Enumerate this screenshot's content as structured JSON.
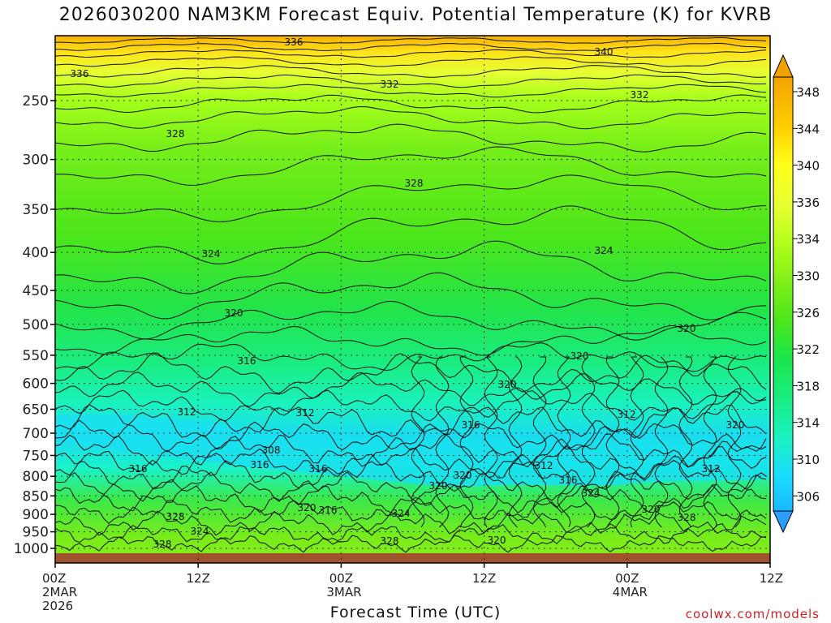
{
  "chart_data": {
    "type": "heatmap",
    "title": "2026030200 NAM3KM Forecast Equiv. Potential Temperature (K) for KVRB",
    "xlabel": "Forecast Time (UTC)",
    "ylabel": "",
    "credit": "coolwx.com/models",
    "y_axis": {
      "scale": "pressure (descending upward)",
      "ticks": [
        250,
        300,
        350,
        400,
        450,
        500,
        550,
        600,
        650,
        700,
        750,
        800,
        850,
        900,
        950,
        1000
      ]
    },
    "x_axis": {
      "ticks": [
        {
          "line1": "00Z",
          "line2": "2MAR",
          "line3": "2026"
        },
        {
          "line1": "12Z",
          "line2": "",
          "line3": ""
        },
        {
          "line1": "00Z",
          "line2": "3MAR",
          "line3": ""
        },
        {
          "line1": "12Z",
          "line2": "",
          "line3": ""
        },
        {
          "line1": "00Z",
          "line2": "4MAR",
          "line3": ""
        },
        {
          "line1": "12Z",
          "line2": "",
          "line3": ""
        }
      ]
    },
    "colorbar": {
      "labels": [
        348,
        344,
        340,
        336,
        334,
        330,
        326,
        322,
        318,
        314,
        310,
        306
      ],
      "colors": [
        "#f2a200",
        "#ffd000",
        "#ffff1a",
        "#e6ff33",
        "#b4ff1a",
        "#80ef1a",
        "#4ce61a",
        "#1ae64d",
        "#1aed80",
        "#1af2c0",
        "#1adcff",
        "#1ab8ff",
        "#2a9fff"
      ]
    },
    "contour_labels": [
      "336",
      "340",
      "336",
      "332",
      "332",
      "328",
      "328",
      "324",
      "324",
      "320",
      "320",
      "316",
      "320",
      "320",
      "312",
      "312",
      "316",
      "308",
      "312",
      "316",
      "312",
      "320",
      "316",
      "320",
      "316",
      "312",
      "316",
      "324",
      "320",
      "320",
      "316",
      "324",
      "320",
      "328",
      "324",
      "328",
      "328",
      "328",
      "320"
    ],
    "profile": [
      {
        "p": 250,
        "theta_e": 333
      },
      {
        "p": 300,
        "theta_e": 330
      },
      {
        "p": 400,
        "theta_e": 326
      },
      {
        "p": 500,
        "theta_e": 322
      },
      {
        "p": 600,
        "theta_e": 318
      },
      {
        "p": 700,
        "theta_e": 311
      },
      {
        "p": 750,
        "theta_e": 309
      },
      {
        "p": 800,
        "theta_e": 315
      },
      {
        "p": 900,
        "theta_e": 321
      },
      {
        "p": 1000,
        "theta_e": 327
      }
    ]
  }
}
